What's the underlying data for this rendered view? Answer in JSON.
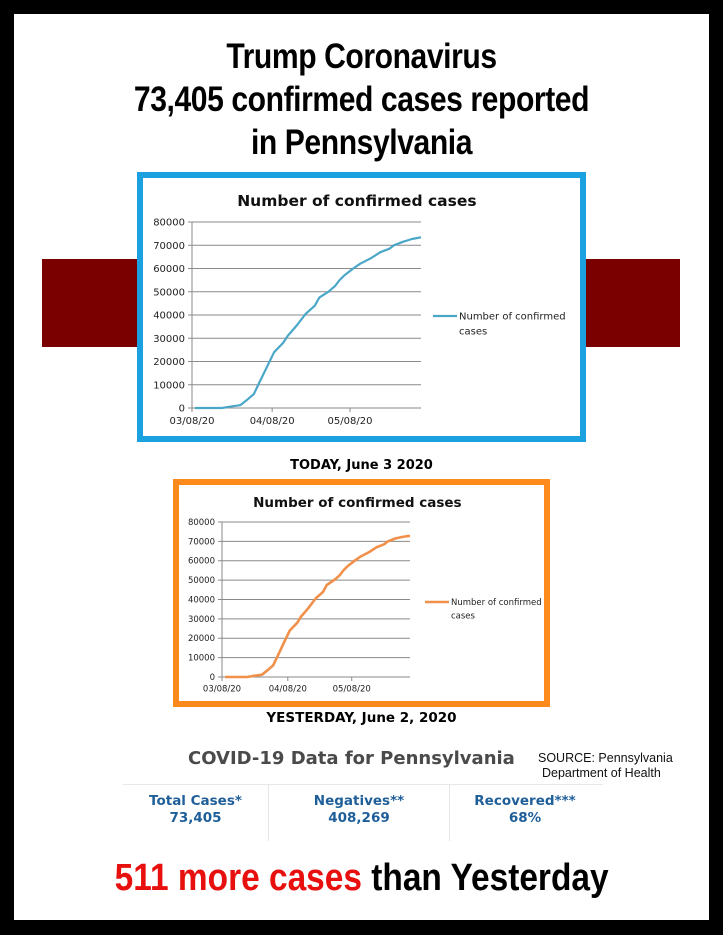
{
  "headline": {
    "line1": "Trump Coronavirus",
    "line2": "73,405 confirmed cases reported",
    "line3": "in Pennsylvania"
  },
  "colors": {
    "frame": "#000000",
    "band": "#7a0000",
    "today_border": "#1ba0e0",
    "today_line": "#4aa7c8",
    "yesterday_border": "#ff8a1c",
    "yesterday_line": "#f0904a",
    "stats_text": "#1f5f99",
    "footer_red": "#e8100e"
  },
  "captions": {
    "today": "TODAY, June 3 2020",
    "yesterday": "YESTERDAY, June 2, 2020"
  },
  "covid_panel": {
    "title": "COVID-19 Data for Pennsylvania",
    "source_line1": "SOURCE: Pennsylvania",
    "source_line2": "Department of Health",
    "stats": [
      {
        "label": "Total Cases*",
        "value": "73,405"
      },
      {
        "label": "Negatives**",
        "value": "408,269"
      },
      {
        "label": "Recovered***",
        "value": "68%"
      }
    ]
  },
  "footer": {
    "highlight": "511 more cases",
    "rest": "than Yesterday"
  },
  "chart_data": [
    {
      "id": "today",
      "type": "line",
      "title": "Number of confirmed cases",
      "legend": [
        "Number of confirmed",
        "cases"
      ],
      "legend_position": "right",
      "grid": true,
      "ylim": [
        0,
        80000
      ],
      "yticks": [
        0,
        10000,
        20000,
        30000,
        40000,
        50000,
        60000,
        70000,
        80000
      ],
      "xtick_labels": [
        "03/08/20",
        "04/08/20",
        "05/08/20"
      ],
      "xtick_pos": [
        0.0,
        0.35,
        0.69
      ],
      "series": [
        {
          "name": "Number of confirmed cases",
          "x": [
            0.0,
            0.05,
            0.12,
            0.15,
            0.2,
            0.23,
            0.26,
            0.29,
            0.32,
            0.35,
            0.39,
            0.41,
            0.45,
            0.49,
            0.53,
            0.55,
            0.59,
            0.62,
            0.64,
            0.66,
            0.7,
            0.73,
            0.78,
            0.82,
            0.86,
            0.88,
            0.92,
            0.96,
            1.0
          ],
          "values": [
            0,
            0,
            0,
            500,
            1200,
            3500,
            6000,
            12000,
            18000,
            24000,
            28000,
            31000,
            35500,
            40500,
            44000,
            47500,
            50000,
            52500,
            55000,
            57000,
            60000,
            62000,
            64500,
            67000,
            68500,
            70000,
            71500,
            72700,
            73405
          ]
        }
      ]
    },
    {
      "id": "yesterday",
      "type": "line",
      "title": "Number of confirmed cases",
      "legend": [
        "Number of confirmed",
        "cases"
      ],
      "legend_position": "right",
      "grid": true,
      "ylim": [
        0,
        80000
      ],
      "yticks": [
        0,
        10000,
        20000,
        30000,
        40000,
        50000,
        60000,
        70000,
        80000
      ],
      "xtick_labels": [
        "03/08/20",
        "04/08/20",
        "05/08/20"
      ],
      "xtick_pos": [
        0.0,
        0.35,
        0.69
      ],
      "series": [
        {
          "name": "Number of confirmed cases",
          "x": [
            0.0,
            0.05,
            0.12,
            0.15,
            0.2,
            0.23,
            0.26,
            0.29,
            0.32,
            0.35,
            0.39,
            0.41,
            0.45,
            0.49,
            0.53,
            0.55,
            0.59,
            0.62,
            0.64,
            0.66,
            0.7,
            0.73,
            0.78,
            0.82,
            0.86,
            0.88,
            0.92,
            0.96,
            1.0
          ],
          "values": [
            0,
            0,
            0,
            500,
            1200,
            3500,
            6000,
            12000,
            18000,
            24000,
            28000,
            31000,
            35500,
            40500,
            44000,
            47500,
            50000,
            52500,
            55000,
            57000,
            60000,
            62000,
            64500,
            67000,
            68500,
            70000,
            71500,
            72300,
            72894
          ]
        }
      ]
    }
  ]
}
